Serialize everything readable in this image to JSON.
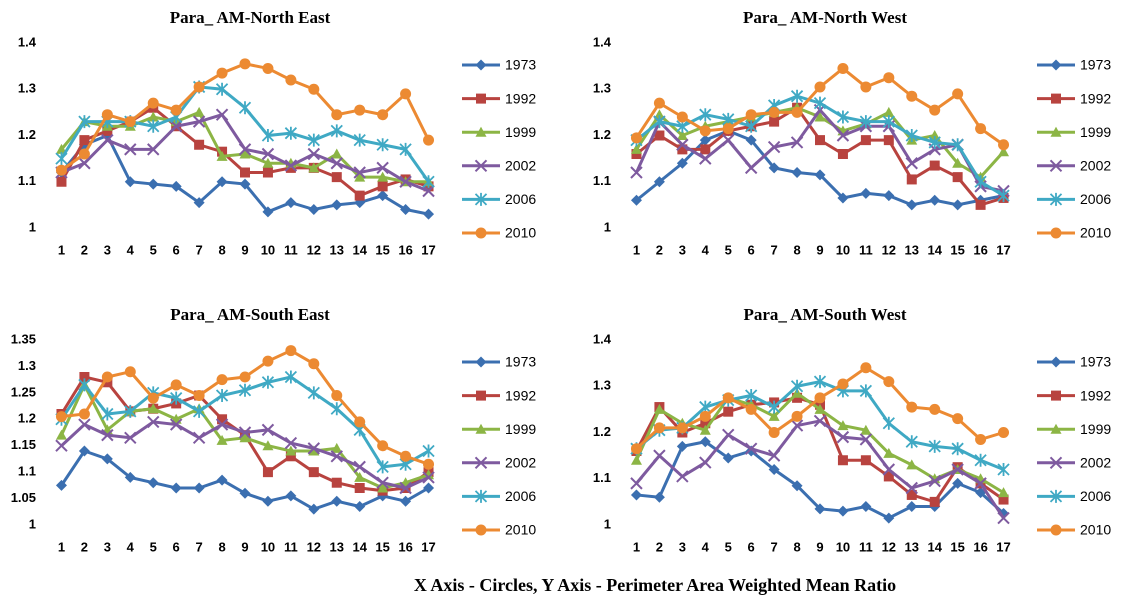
{
  "chart_data": [
    {
      "type": "line",
      "title": "Para_ AM-North East",
      "categories": [
        1,
        2,
        3,
        4,
        5,
        6,
        7,
        8,
        9,
        10,
        11,
        12,
        13,
        14,
        15,
        16,
        17
      ],
      "ylim": [
        1,
        1.4
      ],
      "yticks": [
        1,
        1.1,
        1.2,
        1.3,
        1.4
      ],
      "series": [
        {
          "name": "1973",
          "color": "#3b6fb0",
          "marker": "diamond",
          "values": [
            1.12,
            1.18,
            1.2,
            1.1,
            1.095,
            1.09,
            1.055,
            1.1,
            1.095,
            1.035,
            1.055,
            1.04,
            1.05,
            1.055,
            1.07,
            1.04,
            1.03
          ]
        },
        {
          "name": "1992",
          "color": "#b8433f",
          "marker": "square",
          "values": [
            1.1,
            1.19,
            1.21,
            1.23,
            1.26,
            1.22,
            1.18,
            1.165,
            1.12,
            1.12,
            1.13,
            1.13,
            1.11,
            1.07,
            1.09,
            1.105,
            1.09
          ]
        },
        {
          "name": "1999",
          "color": "#8cb545",
          "marker": "triangle",
          "values": [
            1.17,
            1.23,
            1.22,
            1.22,
            1.24,
            1.23,
            1.25,
            1.155,
            1.16,
            1.14,
            1.14,
            1.13,
            1.16,
            1.11,
            1.11,
            1.1,
            1.1
          ]
        },
        {
          "name": "2002",
          "color": "#7e5a9f",
          "marker": "x",
          "values": [
            1.12,
            1.14,
            1.19,
            1.17,
            1.17,
            1.22,
            1.23,
            1.245,
            1.17,
            1.16,
            1.135,
            1.16,
            1.14,
            1.12,
            1.13,
            1.1,
            1.08
          ]
        },
        {
          "name": "2006",
          "color": "#3fa9c4",
          "marker": "star",
          "values": [
            1.15,
            1.23,
            1.23,
            1.23,
            1.22,
            1.24,
            1.305,
            1.3,
            1.26,
            1.2,
            1.205,
            1.19,
            1.21,
            1.19,
            1.18,
            1.17,
            1.1
          ]
        },
        {
          "name": "2010",
          "color": "#ec8a32",
          "marker": "circle",
          "values": [
            1.125,
            1.16,
            1.245,
            1.23,
            1.27,
            1.255,
            1.305,
            1.335,
            1.355,
            1.345,
            1.32,
            1.3,
            1.245,
            1.255,
            1.245,
            1.29,
            1.19
          ]
        }
      ]
    },
    {
      "type": "line",
      "title": "Para_ AM-North West",
      "categories": [
        1,
        2,
        3,
        4,
        5,
        6,
        7,
        8,
        9,
        10,
        11,
        12,
        13,
        14,
        15,
        16,
        17
      ],
      "ylim": [
        1,
        1.4
      ],
      "yticks": [
        1,
        1.1,
        1.2,
        1.3,
        1.4
      ],
      "series": [
        {
          "name": "1973",
          "color": "#3b6fb0",
          "marker": "diamond",
          "values": [
            1.06,
            1.1,
            1.14,
            1.19,
            1.21,
            1.19,
            1.13,
            1.12,
            1.115,
            1.065,
            1.075,
            1.07,
            1.05,
            1.06,
            1.05,
            1.06,
            1.07
          ]
        },
        {
          "name": "1992",
          "color": "#b8433f",
          "marker": "square",
          "values": [
            1.16,
            1.2,
            1.17,
            1.17,
            1.21,
            1.22,
            1.23,
            1.26,
            1.19,
            1.16,
            1.19,
            1.19,
            1.105,
            1.135,
            1.11,
            1.05,
            1.065
          ]
        },
        {
          "name": "1999",
          "color": "#8cb545",
          "marker": "triangle",
          "values": [
            1.17,
            1.245,
            1.2,
            1.22,
            1.23,
            1.24,
            1.25,
            1.26,
            1.24,
            1.21,
            1.225,
            1.25,
            1.19,
            1.2,
            1.14,
            1.11,
            1.165
          ]
        },
        {
          "name": "2002",
          "color": "#7e5a9f",
          "marker": "x",
          "values": [
            1.12,
            1.23,
            1.18,
            1.15,
            1.19,
            1.13,
            1.175,
            1.185,
            1.255,
            1.2,
            1.22,
            1.22,
            1.14,
            1.17,
            1.18,
            1.09,
            1.08
          ]
        },
        {
          "name": "2006",
          "color": "#3fa9c4",
          "marker": "star",
          "values": [
            1.19,
            1.23,
            1.22,
            1.245,
            1.235,
            1.22,
            1.265,
            1.285,
            1.27,
            1.24,
            1.23,
            1.23,
            1.2,
            1.185,
            1.18,
            1.1,
            1.07
          ]
        },
        {
          "name": "2010",
          "color": "#ec8a32",
          "marker": "circle",
          "values": [
            1.195,
            1.27,
            1.24,
            1.21,
            1.215,
            1.245,
            1.25,
            1.25,
            1.305,
            1.345,
            1.305,
            1.325,
            1.285,
            1.255,
            1.29,
            1.215,
            1.18
          ]
        }
      ]
    },
    {
      "type": "line",
      "title": "Para_ AM-South East",
      "categories": [
        1,
        2,
        3,
        4,
        5,
        6,
        7,
        8,
        9,
        10,
        11,
        12,
        13,
        14,
        15,
        16,
        17
      ],
      "ylim": [
        1,
        1.35
      ],
      "yticks": [
        1,
        1.05,
        1.1,
        1.15,
        1.2,
        1.25,
        1.3,
        1.35
      ],
      "series": [
        {
          "name": "1973",
          "color": "#3b6fb0",
          "marker": "diamond",
          "values": [
            1.075,
            1.14,
            1.125,
            1.09,
            1.08,
            1.07,
            1.07,
            1.085,
            1.06,
            1.045,
            1.055,
            1.03,
            1.045,
            1.035,
            1.055,
            1.045,
            1.07
          ]
        },
        {
          "name": "1992",
          "color": "#b8433f",
          "marker": "square",
          "values": [
            1.21,
            1.28,
            1.27,
            1.215,
            1.22,
            1.23,
            1.245,
            1.2,
            1.17,
            1.1,
            1.13,
            1.1,
            1.08,
            1.07,
            1.065,
            1.07,
            1.1
          ]
        },
        {
          "name": "1999",
          "color": "#8cb545",
          "marker": "triangle",
          "values": [
            1.17,
            1.265,
            1.18,
            1.215,
            1.22,
            1.2,
            1.22,
            1.16,
            1.165,
            1.15,
            1.14,
            1.14,
            1.145,
            1.09,
            1.07,
            1.08,
            1.095
          ]
        },
        {
          "name": "2002",
          "color": "#7e5a9f",
          "marker": "x",
          "values": [
            1.15,
            1.19,
            1.17,
            1.165,
            1.195,
            1.19,
            1.165,
            1.19,
            1.175,
            1.18,
            1.155,
            1.145,
            1.13,
            1.11,
            1.08,
            1.07,
            1.09
          ]
        },
        {
          "name": "2006",
          "color": "#3fa9c4",
          "marker": "star",
          "values": [
            1.2,
            1.265,
            1.21,
            1.215,
            1.25,
            1.24,
            1.215,
            1.245,
            1.255,
            1.27,
            1.28,
            1.25,
            1.22,
            1.18,
            1.11,
            1.115,
            1.14
          ]
        },
        {
          "name": "2010",
          "color": "#ec8a32",
          "marker": "circle",
          "values": [
            1.205,
            1.21,
            1.28,
            1.29,
            1.24,
            1.265,
            1.245,
            1.275,
            1.28,
            1.31,
            1.33,
            1.305,
            1.245,
            1.195,
            1.15,
            1.13,
            1.115
          ]
        }
      ]
    },
    {
      "type": "line",
      "title": "Para_ AM-South West",
      "categories": [
        1,
        2,
        3,
        4,
        5,
        6,
        7,
        8,
        9,
        10,
        11,
        12,
        13,
        14,
        15,
        16,
        17
      ],
      "ylim": [
        1,
        1.4
      ],
      "yticks": [
        1,
        1.1,
        1.2,
        1.3,
        1.4
      ],
      "series": [
        {
          "name": "1973",
          "color": "#3b6fb0",
          "marker": "diamond",
          "values": [
            1.065,
            1.06,
            1.17,
            1.18,
            1.145,
            1.16,
            1.12,
            1.085,
            1.035,
            1.03,
            1.04,
            1.015,
            1.04,
            1.04,
            1.09,
            1.07,
            1.025
          ]
        },
        {
          "name": "1992",
          "color": "#b8433f",
          "marker": "square",
          "values": [
            1.16,
            1.255,
            1.2,
            1.22,
            1.245,
            1.26,
            1.265,
            1.275,
            1.26,
            1.14,
            1.14,
            1.105,
            1.065,
            1.05,
            1.125,
            1.09,
            1.055
          ]
        },
        {
          "name": "1999",
          "color": "#8cb545",
          "marker": "triangle",
          "values": [
            1.14,
            1.25,
            1.22,
            1.205,
            1.275,
            1.26,
            1.235,
            1.285,
            1.25,
            1.215,
            1.205,
            1.155,
            1.13,
            1.1,
            1.12,
            1.1,
            1.07
          ]
        },
        {
          "name": "2002",
          "color": "#7e5a9f",
          "marker": "x",
          "values": [
            1.09,
            1.15,
            1.105,
            1.135,
            1.195,
            1.165,
            1.15,
            1.215,
            1.225,
            1.19,
            1.185,
            1.12,
            1.08,
            1.095,
            1.12,
            1.09,
            1.015
          ]
        },
        {
          "name": "2006",
          "color": "#3fa9c4",
          "marker": "star",
          "values": [
            1.165,
            1.205,
            1.21,
            1.255,
            1.27,
            1.28,
            1.255,
            1.3,
            1.31,
            1.29,
            1.29,
            1.22,
            1.18,
            1.17,
            1.165,
            1.14,
            1.12
          ]
        },
        {
          "name": "2010",
          "color": "#ec8a32",
          "marker": "circle",
          "values": [
            1.165,
            1.21,
            1.21,
            1.235,
            1.275,
            1.25,
            1.2,
            1.235,
            1.275,
            1.305,
            1.34,
            1.31,
            1.255,
            1.25,
            1.23,
            1.185,
            1.2
          ]
        }
      ]
    }
  ],
  "caption": "X Axis - Circles, Y Axis - Perimeter Area Weighted Mean Ratio"
}
